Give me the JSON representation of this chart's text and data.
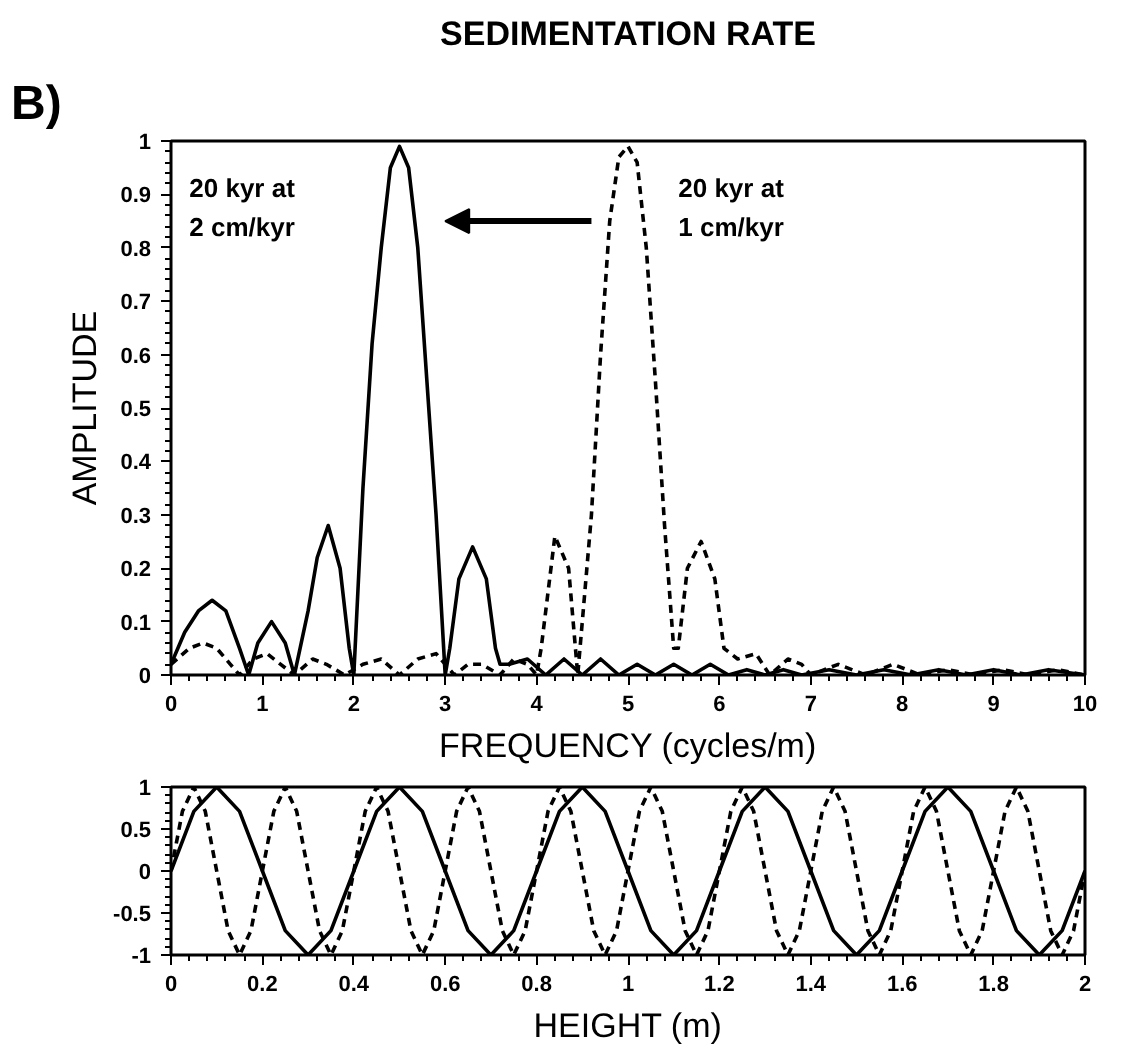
{
  "chart_data": [
    {
      "type": "line",
      "title": "SEDIMENTATION RATE",
      "xlabel": "FREQUENCY (cycles/m)",
      "ylabel": "AMPLITUDE",
      "annotations": [
        "B)",
        "20 kyr at\n2 cm/kyr",
        "20 kyr at\n1 cm/kyr"
      ],
      "xlim": [
        0,
        10
      ],
      "ylim": [
        0,
        1
      ],
      "xticks": [
        0,
        1,
        2,
        3,
        4,
        5,
        6,
        7,
        8,
        9,
        10
      ],
      "yticks": [
        0,
        0.1,
        0.2,
        0.3,
        0.4,
        0.5,
        0.6,
        0.7,
        0.8,
        0.9,
        1
      ],
      "series": [
        {
          "color": "#000000",
          "line_style": "solid",
          "x": [
            0,
            0.15,
            0.3,
            0.45,
            0.6,
            0.75,
            0.85,
            0.95,
            1.1,
            1.25,
            1.35,
            1.5,
            1.6,
            1.72,
            1.85,
            1.95,
            2.0,
            2.1,
            2.2,
            2.3,
            2.4,
            2.5,
            2.6,
            2.7,
            2.8,
            2.9,
            3.0,
            3.05,
            3.15,
            3.3,
            3.45,
            3.55,
            3.6,
            3.7,
            3.9,
            4.1,
            4.3,
            4.5,
            4.7,
            4.9,
            5.1,
            5.3,
            5.5,
            5.7,
            5.9,
            6.1,
            6.3,
            6.5,
            6.7,
            6.9,
            7.2,
            7.5,
            7.8,
            8.1,
            8.4,
            8.7,
            9.0,
            9.3,
            9.6,
            10
          ],
          "values": [
            0.02,
            0.08,
            0.12,
            0.14,
            0.12,
            0.05,
            0.0,
            0.06,
            0.1,
            0.06,
            0.0,
            0.12,
            0.22,
            0.28,
            0.2,
            0.05,
            0.0,
            0.35,
            0.62,
            0.8,
            0.95,
            0.99,
            0.95,
            0.8,
            0.55,
            0.3,
            0.0,
            0.05,
            0.18,
            0.24,
            0.18,
            0.05,
            0.02,
            0.02,
            0.03,
            0.0,
            0.03,
            0.0,
            0.03,
            0.0,
            0.02,
            0.0,
            0.02,
            0.0,
            0.02,
            0.0,
            0.01,
            0.0,
            0.01,
            0.0,
            0.01,
            0.0,
            0.01,
            0.0,
            0.01,
            0.0,
            0.01,
            0.0,
            0.01,
            0.0
          ]
        },
        {
          "color": "#000000",
          "line_style": "dashed",
          "x": [
            0,
            0.2,
            0.35,
            0.5,
            0.65,
            0.75,
            0.9,
            1.05,
            1.2,
            1.35,
            1.55,
            1.7,
            1.9,
            2.1,
            2.3,
            2.5,
            2.7,
            2.9,
            3.1,
            3.25,
            3.4,
            3.6,
            3.75,
            3.9,
            4.0,
            4.05,
            4.2,
            4.35,
            4.45,
            4.6,
            4.7,
            4.8,
            4.9,
            5.0,
            5.1,
            5.2,
            5.3,
            5.4,
            5.5,
            5.55,
            5.65,
            5.8,
            5.95,
            6.05,
            6.2,
            6.4,
            6.55,
            6.75,
            6.9,
            7.0,
            7.3,
            7.6,
            7.9,
            8.2,
            8.5,
            8.8,
            9.1,
            9.4,
            9.7,
            10
          ],
          "values": [
            0.02,
            0.05,
            0.06,
            0.05,
            0.02,
            0.0,
            0.03,
            0.04,
            0.02,
            0.0,
            0.03,
            0.02,
            0.0,
            0.02,
            0.03,
            0.0,
            0.03,
            0.04,
            0.0,
            0.02,
            0.02,
            0.0,
            0.03,
            0.02,
            0.0,
            0.05,
            0.26,
            0.2,
            0.0,
            0.3,
            0.6,
            0.85,
            0.97,
            0.99,
            0.96,
            0.8,
            0.55,
            0.28,
            0.05,
            0.05,
            0.2,
            0.25,
            0.18,
            0.05,
            0.03,
            0.04,
            0.0,
            0.03,
            0.02,
            0.0,
            0.02,
            0.0,
            0.02,
            0.0,
            0.01,
            0.0,
            0.01,
            0.0,
            0.01,
            0.0
          ]
        }
      ]
    },
    {
      "type": "line",
      "xlabel": "HEIGHT (m)",
      "xlim": [
        0,
        2
      ],
      "ylim": [
        -1,
        1
      ],
      "xticks": [
        0,
        0.2,
        0.4,
        0.6,
        0.8,
        1,
        1.2,
        1.4,
        1.6,
        1.8,
        2
      ],
      "yticks": [
        -1,
        -0.5,
        0,
        0.5,
        1
      ],
      "series": [
        {
          "color": "#000000",
          "line_style": "solid",
          "x": [
            0,
            0.05,
            0.1,
            0.15,
            0.2,
            0.25,
            0.3,
            0.35,
            0.4,
            0.45,
            0.5,
            0.55,
            0.6,
            0.65,
            0.7,
            0.75,
            0.8,
            0.85,
            0.9,
            0.95,
            1.0,
            1.05,
            1.1,
            1.15,
            1.2,
            1.25,
            1.3,
            1.35,
            1.4,
            1.45,
            1.5,
            1.55,
            1.6,
            1.65,
            1.7,
            1.75,
            1.8,
            1.85,
            1.9,
            1.95,
            2.0
          ],
          "values": [
            0,
            0.71,
            1,
            0.71,
            0,
            -0.71,
            -1,
            -0.71,
            0,
            0.71,
            1,
            0.71,
            0,
            -0.71,
            -1,
            -0.71,
            0,
            0.71,
            1,
            0.71,
            0,
            -0.71,
            -1,
            -0.71,
            0,
            0.71,
            1,
            0.71,
            0,
            -0.71,
            -1,
            -0.71,
            0,
            0.71,
            1,
            0.71,
            0,
            -0.71,
            -1,
            -0.71,
            0
          ]
        },
        {
          "color": "#000000",
          "line_style": "dashed",
          "x": [
            0,
            0.025,
            0.05,
            0.075,
            0.1,
            0.125,
            0.15,
            0.175,
            0.2,
            0.225,
            0.25,
            0.275,
            0.3,
            0.325,
            0.35,
            0.375,
            0.4,
            0.425,
            0.45,
            0.475,
            0.5,
            0.525,
            0.55,
            0.575,
            0.6,
            0.625,
            0.65,
            0.675,
            0.7,
            0.725,
            0.75,
            0.775,
            0.8,
            0.825,
            0.85,
            0.875,
            0.9,
            0.925,
            0.95,
            0.975,
            1.0,
            1.025,
            1.05,
            1.075,
            1.1,
            1.125,
            1.15,
            1.175,
            1.2,
            1.225,
            1.25,
            1.275,
            1.3,
            1.325,
            1.35,
            1.375,
            1.4,
            1.425,
            1.45,
            1.475,
            1.5,
            1.525,
            1.55,
            1.575,
            1.6,
            1.625,
            1.65,
            1.675,
            1.7,
            1.725,
            1.75,
            1.775,
            1.8,
            1.825,
            1.85,
            1.875,
            1.9,
            1.925,
            1.95,
            1.975,
            2.0
          ],
          "values": [
            0,
            0.71,
            1,
            0.71,
            0,
            -0.71,
            -1,
            -0.71,
            0,
            0.71,
            1,
            0.71,
            0,
            -0.71,
            -1,
            -0.71,
            0,
            0.71,
            1,
            0.71,
            0,
            -0.71,
            -1,
            -0.71,
            0,
            0.71,
            1,
            0.71,
            0,
            -0.71,
            -1,
            -0.71,
            0,
            0.71,
            1,
            0.71,
            0,
            -0.71,
            -1,
            -0.71,
            0,
            0.71,
            1,
            0.71,
            0,
            -0.71,
            -1,
            -0.71,
            0,
            0.71,
            1,
            0.71,
            0,
            -0.71,
            -1,
            -0.71,
            0,
            0.71,
            1,
            0.71,
            0,
            -0.71,
            -1,
            -0.71,
            0,
            0.71,
            1,
            0.71,
            0,
            -0.71,
            -1,
            -0.71,
            0,
            0.71,
            1,
            0.71,
            0,
            -0.71,
            -1,
            -0.71,
            0
          ]
        }
      ]
    }
  ]
}
